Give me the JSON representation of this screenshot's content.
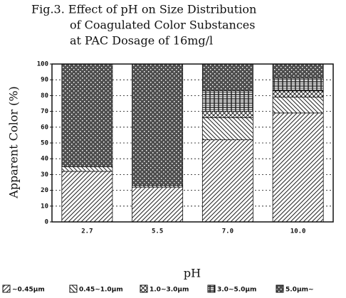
{
  "chart_data": {
    "type": "stacked-bar",
    "title": [
      "Fig.3. Effect of pH on Size Distribution",
      "of Coagulated Color Substances",
      "at PAC Dosage of 16mg/l"
    ],
    "xlabel": "pH",
    "ylabel": "Apparent Color (%)",
    "categories": [
      "2.7",
      "5.5",
      "7.0",
      "10.0"
    ],
    "series": [
      {
        "name": "~0.45μm",
        "color": "#222",
        "pattern": "diagonal",
        "values": [
          32,
          22,
          52,
          69
        ]
      },
      {
        "name": "0.45~1.0μm",
        "color": "#222",
        "pattern": "back-diagonal",
        "values": [
          3,
          1,
          14,
          10
        ]
      },
      {
        "name": "1.0~3.0μm",
        "color": "#222",
        "pattern": "crosshatch",
        "values": [
          0,
          0,
          4,
          4
        ]
      },
      {
        "name": "3.0~5.0μm",
        "color": "#222",
        "pattern": "grid",
        "values": [
          0,
          0,
          13,
          8
        ]
      },
      {
        "name": "5.0μm~",
        "color": "#222",
        "pattern": "dense",
        "values": [
          65,
          77,
          17,
          9
        ]
      }
    ],
    "ylim": [
      0,
      100
    ],
    "yticks": [
      0,
      10,
      20,
      30,
      40,
      50,
      60,
      70,
      80,
      90,
      100
    ],
    "grid": true
  }
}
